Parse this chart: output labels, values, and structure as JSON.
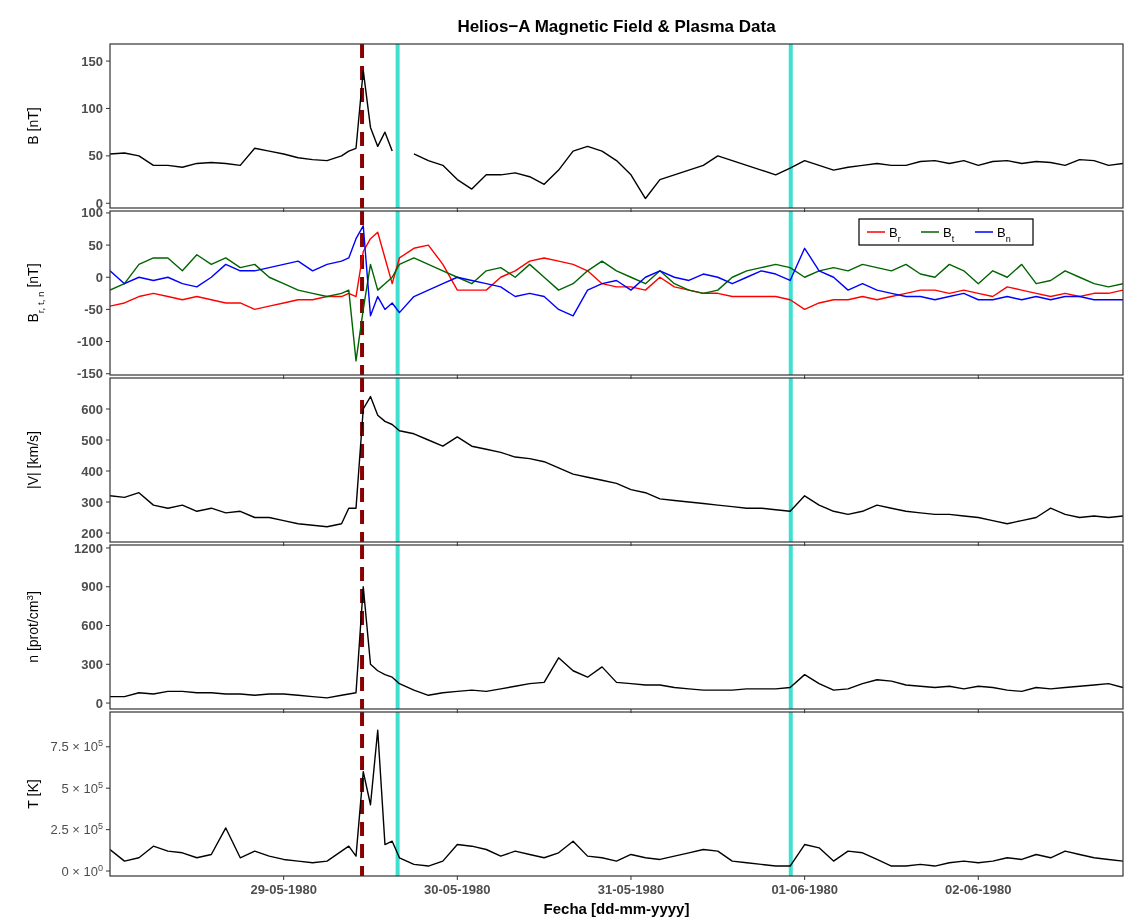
{
  "chart_data": [
    {
      "type": "line",
      "title": "Helios−A Magnetic Field & Plasma Data",
      "ylabel": "B [nT]",
      "tick_labels": "y",
      "xlim": [
        "1980-05-28T00:00",
        "1980-06-02T20:00"
      ],
      "xticks": [
        {
          "value": "1980-05-29",
          "label": null
        },
        {
          "value": "1980-05-30",
          "label": null
        },
        {
          "value": "1980-05-31",
          "label": null
        },
        {
          "value": "1980-06-01",
          "label": null
        },
        {
          "value": "1980-06-02",
          "label": null
        }
      ],
      "ylim": [
        -5,
        168
      ],
      "yticks": [
        0,
        50,
        100,
        150
      ],
      "x": [
        "1980-05-28T00:00",
        "1980-05-28T02:00",
        "1980-05-28T04:00",
        "1980-05-28T06:00",
        "1980-05-28T08:00",
        "1980-05-28T10:00",
        "1980-05-28T12:00",
        "1980-05-28T14:00",
        "1980-05-28T16:00",
        "1980-05-28T18:00",
        "1980-05-28T20:00",
        "1980-05-28T22:00",
        "1980-05-29T00:00",
        "1980-05-29T02:00",
        "1980-05-29T04:00",
        "1980-05-29T06:00",
        "1980-05-29T08:00",
        "1980-05-29T09:00",
        "1980-05-29T10:00",
        "1980-05-29T11:00",
        "1980-05-29T12:00",
        "1980-05-29T13:00",
        "1980-05-29T14:00",
        "1980-05-29T15:00",
        "1980-05-29T16:00",
        "1980-05-29T18:00",
        "1980-05-29T20:00",
        "1980-05-29T22:00",
        "1980-05-30T00:00",
        "1980-05-30T02:00",
        "1980-05-30T04:00",
        "1980-05-30T06:00",
        "1980-05-30T08:00",
        "1980-05-30T10:00",
        "1980-05-30T12:00",
        "1980-05-30T14:00",
        "1980-05-30T16:00",
        "1980-05-30T18:00",
        "1980-05-30T20:00",
        "1980-05-30T22:00",
        "1980-05-31T00:00",
        "1980-05-31T02:00",
        "1980-05-31T04:00",
        "1980-05-31T06:00",
        "1980-05-31T08:00",
        "1980-05-31T10:00",
        "1980-05-31T12:00",
        "1980-05-31T14:00",
        "1980-05-31T16:00",
        "1980-05-31T18:00",
        "1980-05-31T20:00",
        "1980-05-31T22:00",
        "1980-06-01T00:00",
        "1980-06-01T02:00",
        "1980-06-01T04:00",
        "1980-06-01T06:00",
        "1980-06-01T08:00",
        "1980-06-01T10:00",
        "1980-06-01T12:00",
        "1980-06-01T14:00",
        "1980-06-01T16:00",
        "1980-06-01T18:00",
        "1980-06-01T20:00",
        "1980-06-01T22:00",
        "1980-06-02T00:00",
        "1980-06-02T02:00",
        "1980-06-02T04:00",
        "1980-06-02T06:00",
        "1980-06-02T08:00",
        "1980-06-02T10:00",
        "1980-06-02T12:00",
        "1980-06-02T14:00",
        "1980-06-02T16:00",
        "1980-06-02T18:00",
        "1980-06-02T20:00"
      ],
      "series": [
        {
          "color": "#000000",
          "values": [
            52,
            53,
            50,
            40,
            40,
            38,
            42,
            43,
            42,
            40,
            58,
            55,
            52,
            48,
            46,
            45,
            50,
            55,
            58,
            140,
            80,
            60,
            75,
            55,
            null,
            52,
            45,
            40,
            25,
            15,
            30,
            30,
            32,
            28,
            20,
            35,
            55,
            60,
            55,
            45,
            30,
            5,
            25,
            30,
            35,
            40,
            50,
            45,
            40,
            35,
            30,
            37,
            45,
            40,
            35,
            38,
            40,
            42,
            40,
            40,
            44,
            45,
            42,
            45,
            40,
            44,
            45,
            42,
            44,
            43,
            40,
            46,
            45,
            40,
            42
          ]
        }
      ],
      "ref_lines": [
        {
          "axis": "x",
          "value": "1980-05-29T10:50",
          "color": "#8b0000",
          "line_style": "dashed"
        },
        {
          "axis": "x",
          "value": "1980-05-29T15:45",
          "color": "#40e0d0",
          "line_style": "solid"
        },
        {
          "axis": "x",
          "value": "1980-05-31T22:05",
          "color": "#40e0d0",
          "line_style": "solid"
        }
      ]
    },
    {
      "type": "line",
      "ylabel": "B$_{r, t, n}$ [nT]",
      "tick_labels": "y",
      "legend": "top right",
      "xlim": [
        "1980-05-28T00:00",
        "1980-06-02T20:00"
      ],
      "xticks": [
        {
          "value": "1980-05-29",
          "label": null
        },
        {
          "value": "1980-05-30",
          "label": null
        },
        {
          "value": "1980-05-31",
          "label": null
        },
        {
          "value": "1980-06-01",
          "label": null
        },
        {
          "value": "1980-06-02",
          "label": null
        }
      ],
      "ylim": [
        -152,
        103
      ],
      "yticks": [
        -150,
        -100,
        -50,
        0,
        50,
        100
      ],
      "x": [
        "1980-05-28T00:00",
        "1980-05-28T02:00",
        "1980-05-28T04:00",
        "1980-05-28T06:00",
        "1980-05-28T08:00",
        "1980-05-28T10:00",
        "1980-05-28T12:00",
        "1980-05-28T14:00",
        "1980-05-28T16:00",
        "1980-05-28T18:00",
        "1980-05-28T20:00",
        "1980-05-28T22:00",
        "1980-05-29T00:00",
        "1980-05-29T02:00",
        "1980-05-29T04:00",
        "1980-05-29T06:00",
        "1980-05-29T08:00",
        "1980-05-29T09:00",
        "1980-05-29T10:00",
        "1980-05-29T11:00",
        "1980-05-29T12:00",
        "1980-05-29T13:00",
        "1980-05-29T14:00",
        "1980-05-29T15:00",
        "1980-05-29T16:00",
        "1980-05-29T18:00",
        "1980-05-29T20:00",
        "1980-05-29T22:00",
        "1980-05-30T00:00",
        "1980-05-30T02:00",
        "1980-05-30T04:00",
        "1980-05-30T06:00",
        "1980-05-30T08:00",
        "1980-05-30T10:00",
        "1980-05-30T12:00",
        "1980-05-30T14:00",
        "1980-05-30T16:00",
        "1980-05-30T18:00",
        "1980-05-30T20:00",
        "1980-05-30T22:00",
        "1980-05-31T00:00",
        "1980-05-31T02:00",
        "1980-05-31T04:00",
        "1980-05-31T06:00",
        "1980-05-31T08:00",
        "1980-05-31T10:00",
        "1980-05-31T12:00",
        "1980-05-31T14:00",
        "1980-05-31T16:00",
        "1980-05-31T18:00",
        "1980-05-31T20:00",
        "1980-05-31T22:00",
        "1980-06-01T00:00",
        "1980-06-01T02:00",
        "1980-06-01T04:00",
        "1980-06-01T06:00",
        "1980-06-01T08:00",
        "1980-06-01T10:00",
        "1980-06-01T12:00",
        "1980-06-01T14:00",
        "1980-06-01T16:00",
        "1980-06-01T18:00",
        "1980-06-01T20:00",
        "1980-06-01T22:00",
        "1980-06-02T00:00",
        "1980-06-02T02:00",
        "1980-06-02T04:00",
        "1980-06-02T06:00",
        "1980-06-02T08:00",
        "1980-06-02T10:00",
        "1980-06-02T12:00",
        "1980-06-02T14:00",
        "1980-06-02T16:00",
        "1980-06-02T18:00",
        "1980-06-02T20:00"
      ],
      "series": [
        {
          "name": "B$_{r}$",
          "color": "#ff0000",
          "values": [
            -45,
            -40,
            -30,
            -25,
            -30,
            -35,
            -30,
            -35,
            -40,
            -40,
            -50,
            -45,
            -40,
            -35,
            -35,
            -30,
            -30,
            -25,
            -30,
            40,
            60,
            70,
            30,
            -10,
            30,
            45,
            50,
            20,
            -20,
            -20,
            -20,
            0,
            10,
            25,
            30,
            25,
            20,
            10,
            -10,
            -15,
            -15,
            -20,
            0,
            -15,
            -20,
            -25,
            -25,
            -30,
            -30,
            -30,
            -30,
            -35,
            -50,
            -40,
            -35,
            -35,
            -30,
            -35,
            -30,
            -25,
            -20,
            -20,
            -25,
            -20,
            -25,
            -30,
            -15,
            -20,
            -25,
            -30,
            -25,
            -30,
            -25,
            -25,
            -20
          ]
        },
        {
          "name": "B$_{t}$",
          "color": "#006400",
          "values": [
            -20,
            -10,
            20,
            30,
            30,
            10,
            35,
            20,
            30,
            15,
            20,
            0,
            -10,
            -20,
            -25,
            -30,
            -25,
            -20,
            -130,
            -50,
            20,
            -20,
            -10,
            0,
            20,
            30,
            20,
            10,
            0,
            -10,
            10,
            15,
            0,
            20,
            0,
            -20,
            -10,
            10,
            25,
            10,
            0,
            -10,
            10,
            -10,
            -20,
            -25,
            -20,
            0,
            10,
            15,
            20,
            15,
            0,
            10,
            15,
            10,
            20,
            15,
            10,
            20,
            5,
            0,
            20,
            10,
            -10,
            10,
            0,
            20,
            -10,
            -5,
            10,
            0,
            -10,
            -15,
            -10
          ]
        },
        {
          "name": "B$_{n}$",
          "color": "#0000ff",
          "values": [
            10,
            -10,
            0,
            -5,
            0,
            -10,
            -15,
            0,
            20,
            10,
            10,
            15,
            20,
            25,
            10,
            20,
            25,
            30,
            60,
            80,
            -60,
            -30,
            -50,
            -40,
            -55,
            -30,
            -20,
            -10,
            0,
            -5,
            -10,
            -15,
            -30,
            -25,
            -30,
            -50,
            -60,
            -20,
            -10,
            -5,
            -20,
            0,
            10,
            0,
            -5,
            5,
            0,
            -10,
            0,
            10,
            5,
            -5,
            45,
            10,
            0,
            -20,
            -10,
            -20,
            -25,
            -30,
            -30,
            -35,
            -30,
            -25,
            -35,
            -35,
            -30,
            -35,
            -30,
            -35,
            -30,
            -30,
            -35,
            -35,
            -35
          ]
        }
      ],
      "ref_lines": [
        {
          "axis": "x",
          "value": "1980-05-29T10:50",
          "color": "#8b0000",
          "line_style": "dashed"
        },
        {
          "axis": "x",
          "value": "1980-05-29T15:45",
          "color": "#40e0d0",
          "line_style": "solid"
        },
        {
          "axis": "x",
          "value": "1980-05-31T22:05",
          "color": "#40e0d0",
          "line_style": "solid"
        }
      ]
    },
    {
      "type": "line",
      "ylabel": "|V| [km/s]",
      "tick_labels": "y",
      "xlim": [
        "1980-05-28T00:00",
        "1980-06-02T20:00"
      ],
      "xticks": [
        {
          "value": "1980-05-29",
          "label": null
        },
        {
          "value": "1980-05-30",
          "label": null
        },
        {
          "value": "1980-05-31",
          "label": null
        },
        {
          "value": "1980-06-01",
          "label": null
        },
        {
          "value": "1980-06-02",
          "label": null
        }
      ],
      "ylim": [
        171,
        700
      ],
      "yticks": [
        200,
        300,
        400,
        500,
        600
      ],
      "x": [
        "1980-05-28T00:00",
        "1980-05-28T02:00",
        "1980-05-28T04:00",
        "1980-05-28T06:00",
        "1980-05-28T08:00",
        "1980-05-28T10:00",
        "1980-05-28T12:00",
        "1980-05-28T14:00",
        "1980-05-28T16:00",
        "1980-05-28T18:00",
        "1980-05-28T20:00",
        "1980-05-28T22:00",
        "1980-05-29T00:00",
        "1980-05-29T02:00",
        "1980-05-29T04:00",
        "1980-05-29T06:00",
        "1980-05-29T08:00",
        "1980-05-29T09:00",
        "1980-05-29T10:00",
        "1980-05-29T11:00",
        "1980-05-29T12:00",
        "1980-05-29T13:00",
        "1980-05-29T14:00",
        "1980-05-29T15:00",
        "1980-05-29T16:00",
        "1980-05-29T18:00",
        "1980-05-29T20:00",
        "1980-05-29T22:00",
        "1980-05-30T00:00",
        "1980-05-30T02:00",
        "1980-05-30T04:00",
        "1980-05-30T06:00",
        "1980-05-30T08:00",
        "1980-05-30T10:00",
        "1980-05-30T12:00",
        "1980-05-30T14:00",
        "1980-05-30T16:00",
        "1980-05-30T18:00",
        "1980-05-30T20:00",
        "1980-05-30T22:00",
        "1980-05-31T00:00",
        "1980-05-31T02:00",
        "1980-05-31T04:00",
        "1980-05-31T06:00",
        "1980-05-31T08:00",
        "1980-05-31T10:00",
        "1980-05-31T12:00",
        "1980-05-31T14:00",
        "1980-05-31T16:00",
        "1980-05-31T18:00",
        "1980-05-31T20:00",
        "1980-05-31T22:00",
        "1980-06-01T00:00",
        "1980-06-01T02:00",
        "1980-06-01T04:00",
        "1980-06-01T06:00",
        "1980-06-01T08:00",
        "1980-06-01T10:00",
        "1980-06-01T12:00",
        "1980-06-01T14:00",
        "1980-06-01T16:00",
        "1980-06-01T18:00",
        "1980-06-01T20:00",
        "1980-06-01T22:00",
        "1980-06-02T00:00",
        "1980-06-02T02:00",
        "1980-06-02T04:00",
        "1980-06-02T06:00",
        "1980-06-02T08:00",
        "1980-06-02T10:00",
        "1980-06-02T12:00",
        "1980-06-02T14:00",
        "1980-06-02T16:00",
        "1980-06-02T18:00",
        "1980-06-02T20:00"
      ],
      "series": [
        {
          "color": "#000000",
          "values": [
            320,
            315,
            330,
            290,
            280,
            290,
            270,
            280,
            265,
            270,
            250,
            250,
            240,
            230,
            225,
            220,
            230,
            280,
            280,
            600,
            640,
            580,
            560,
            550,
            530,
            520,
            500,
            480,
            510,
            480,
            470,
            460,
            445,
            440,
            430,
            410,
            390,
            380,
            370,
            360,
            340,
            330,
            310,
            305,
            300,
            295,
            290,
            285,
            280,
            280,
            275,
            270,
            320,
            290,
            270,
            260,
            270,
            290,
            280,
            270,
            265,
            260,
            260,
            255,
            250,
            240,
            230,
            240,
            250,
            280,
            260,
            250,
            255,
            250,
            255
          ]
        }
      ],
      "ref_lines": [
        {
          "axis": "x",
          "value": "1980-05-29T10:50",
          "color": "#8b0000",
          "line_style": "dashed"
        },
        {
          "axis": "x",
          "value": "1980-05-29T15:45",
          "color": "#40e0d0",
          "line_style": "solid"
        },
        {
          "axis": "x",
          "value": "1980-05-31T22:05",
          "color": "#40e0d0",
          "line_style": "solid"
        }
      ]
    },
    {
      "type": "line",
      "ylabel": "n [prot/cm$^{3}$]",
      "tick_labels": "y",
      "xlim": [
        "1980-05-28T00:00",
        "1980-06-02T20:00"
      ],
      "xticks": [
        {
          "value": "1980-05-29",
          "label": null
        },
        {
          "value": "1980-05-30",
          "label": null
        },
        {
          "value": "1980-05-31",
          "label": null
        },
        {
          "value": "1980-06-01",
          "label": null
        },
        {
          "value": "1980-06-02",
          "label": null
        }
      ],
      "ylim": [
        -46,
        1223
      ],
      "yticks": [
        0,
        300,
        600,
        900,
        1200
      ],
      "x": [
        "1980-05-28T00:00",
        "1980-05-28T02:00",
        "1980-05-28T04:00",
        "1980-05-28T06:00",
        "1980-05-28T08:00",
        "1980-05-28T10:00",
        "1980-05-28T12:00",
        "1980-05-28T14:00",
        "1980-05-28T16:00",
        "1980-05-28T18:00",
        "1980-05-28T20:00",
        "1980-05-28T22:00",
        "1980-05-29T00:00",
        "1980-05-29T02:00",
        "1980-05-29T04:00",
        "1980-05-29T06:00",
        "1980-05-29T08:00",
        "1980-05-29T09:00",
        "1980-05-29T10:00",
        "1980-05-29T11:00",
        "1980-05-29T12:00",
        "1980-05-29T13:00",
        "1980-05-29T14:00",
        "1980-05-29T15:00",
        "1980-05-29T16:00",
        "1980-05-29T18:00",
        "1980-05-29T20:00",
        "1980-05-29T22:00",
        "1980-05-30T00:00",
        "1980-05-30T02:00",
        "1980-05-30T04:00",
        "1980-05-30T06:00",
        "1980-05-30T08:00",
        "1980-05-30T10:00",
        "1980-05-30T12:00",
        "1980-05-30T14:00",
        "1980-05-30T16:00",
        "1980-05-30T18:00",
        "1980-05-30T20:00",
        "1980-05-30T22:00",
        "1980-05-31T00:00",
        "1980-05-31T02:00",
        "1980-05-31T04:00",
        "1980-05-31T06:00",
        "1980-05-31T08:00",
        "1980-05-31T10:00",
        "1980-05-31T12:00",
        "1980-05-31T14:00",
        "1980-05-31T16:00",
        "1980-05-31T18:00",
        "1980-05-31T20:00",
        "1980-05-31T22:00",
        "1980-06-01T00:00",
        "1980-06-01T02:00",
        "1980-06-01T04:00",
        "1980-06-01T06:00",
        "1980-06-01T08:00",
        "1980-06-01T10:00",
        "1980-06-01T12:00",
        "1980-06-01T14:00",
        "1980-06-01T16:00",
        "1980-06-01T18:00",
        "1980-06-01T20:00",
        "1980-06-01T22:00",
        "1980-06-02T00:00",
        "1980-06-02T02:00",
        "1980-06-02T04:00",
        "1980-06-02T06:00",
        "1980-06-02T08:00",
        "1980-06-02T10:00",
        "1980-06-02T12:00",
        "1980-06-02T14:00",
        "1980-06-02T16:00",
        "1980-06-02T18:00",
        "1980-06-02T20:00"
      ],
      "series": [
        {
          "color": "#000000",
          "values": [
            50,
            50,
            80,
            70,
            90,
            90,
            80,
            80,
            70,
            70,
            60,
            70,
            70,
            60,
            50,
            40,
            60,
            70,
            80,
            900,
            300,
            250,
            220,
            200,
            150,
            100,
            60,
            80,
            90,
            100,
            90,
            110,
            130,
            150,
            160,
            350,
            250,
            200,
            280,
            160,
            150,
            140,
            140,
            120,
            110,
            100,
            100,
            100,
            110,
            110,
            110,
            120,
            220,
            150,
            100,
            110,
            150,
            180,
            170,
            140,
            130,
            120,
            130,
            110,
            130,
            120,
            100,
            90,
            120,
            110,
            120,
            130,
            140,
            150,
            120
          ]
        }
      ],
      "ref_lines": [
        {
          "axis": "x",
          "value": "1980-05-29T10:50",
          "color": "#8b0000",
          "line_style": "dashed"
        },
        {
          "axis": "x",
          "value": "1980-05-29T15:45",
          "color": "#40e0d0",
          "line_style": "solid"
        },
        {
          "axis": "x",
          "value": "1980-05-31T22:05",
          "color": "#40e0d0",
          "line_style": "solid"
        }
      ]
    },
    {
      "type": "line",
      "ylabel": "T [K]",
      "xlabel": "Fecha [dd-mm-yyyy]",
      "xlim": [
        "1980-05-28T00:00",
        "1980-06-02T20:00"
      ],
      "xticks": [
        {
          "value": "1980-05-29",
          "label": "29-05-1980"
        },
        {
          "value": "1980-05-30",
          "label": "30-05-1980"
        },
        {
          "value": "1980-05-31",
          "label": "31-05-1980"
        },
        {
          "value": "1980-06-01",
          "label": "01-06-1980"
        },
        {
          "value": "1980-06-02",
          "label": "02-06-1980"
        }
      ],
      "ylim": [
        -30000,
        960000
      ],
      "yticks": [
        {
          "value": 0,
          "label": "0 × 10$^{0}$"
        },
        {
          "value": 250000,
          "label": "2.5 × 10$^{5}$"
        },
        {
          "value": 500000,
          "label": "5 × 10$^{5}$"
        },
        {
          "value": 750000,
          "label": "7.5 × 10$^{5}$"
        }
      ],
      "x": [
        "1980-05-28T00:00",
        "1980-05-28T02:00",
        "1980-05-28T04:00",
        "1980-05-28T06:00",
        "1980-05-28T08:00",
        "1980-05-28T10:00",
        "1980-05-28T12:00",
        "1980-05-28T14:00",
        "1980-05-28T16:00",
        "1980-05-28T18:00",
        "1980-05-28T20:00",
        "1980-05-28T22:00",
        "1980-05-29T00:00",
        "1980-05-29T02:00",
        "1980-05-29T04:00",
        "1980-05-29T06:00",
        "1980-05-29T08:00",
        "1980-05-29T09:00",
        "1980-05-29T10:00",
        "1980-05-29T11:00",
        "1980-05-29T12:00",
        "1980-05-29T13:00",
        "1980-05-29T14:00",
        "1980-05-29T15:00",
        "1980-05-29T16:00",
        "1980-05-29T18:00",
        "1980-05-29T20:00",
        "1980-05-29T22:00",
        "1980-05-30T00:00",
        "1980-05-30T02:00",
        "1980-05-30T04:00",
        "1980-05-30T06:00",
        "1980-05-30T08:00",
        "1980-05-30T10:00",
        "1980-05-30T12:00",
        "1980-05-30T14:00",
        "1980-05-30T16:00",
        "1980-05-30T18:00",
        "1980-05-30T20:00",
        "1980-05-30T22:00",
        "1980-05-31T00:00",
        "1980-05-31T02:00",
        "1980-05-31T04:00",
        "1980-05-31T06:00",
        "1980-05-31T08:00",
        "1980-05-31T10:00",
        "1980-05-31T12:00",
        "1980-05-31T14:00",
        "1980-05-31T16:00",
        "1980-05-31T18:00",
        "1980-05-31T20:00",
        "1980-05-31T22:00",
        "1980-06-01T00:00",
        "1980-06-01T02:00",
        "1980-06-01T04:00",
        "1980-06-01T06:00",
        "1980-06-01T08:00",
        "1980-06-01T10:00",
        "1980-06-01T12:00",
        "1980-06-01T14:00",
        "1980-06-01T16:00",
        "1980-06-01T18:00",
        "1980-06-01T20:00",
        "1980-06-01T22:00",
        "1980-06-02T00:00",
        "1980-06-02T02:00",
        "1980-06-02T04:00",
        "1980-06-02T06:00",
        "1980-06-02T08:00",
        "1980-06-02T10:00",
        "1980-06-02T12:00",
        "1980-06-02T14:00",
        "1980-06-02T16:00",
        "1980-06-02T18:00",
        "1980-06-02T20:00"
      ],
      "series": [
        {
          "color": "#000000",
          "values": [
            130000,
            60000,
            80000,
            150000,
            120000,
            110000,
            80000,
            100000,
            260000,
            80000,
            120000,
            90000,
            70000,
            60000,
            50000,
            60000,
            120000,
            150000,
            90000,
            600000,
            400000,
            850000,
            160000,
            180000,
            80000,
            40000,
            30000,
            60000,
            160000,
            150000,
            130000,
            90000,
            120000,
            100000,
            80000,
            110000,
            180000,
            90000,
            80000,
            60000,
            100000,
            80000,
            70000,
            90000,
            110000,
            130000,
            120000,
            60000,
            50000,
            40000,
            30000,
            30000,
            160000,
            140000,
            60000,
            120000,
            110000,
            70000,
            30000,
            30000,
            40000,
            30000,
            50000,
            60000,
            50000,
            60000,
            80000,
            70000,
            100000,
            80000,
            120000,
            100000,
            80000,
            70000,
            60000
          ]
        }
      ],
      "ref_lines": [
        {
          "axis": "x",
          "value": "1980-05-29T10:50",
          "color": "#8b0000",
          "line_style": "dashed"
        },
        {
          "axis": "x",
          "value": "1980-05-29T15:45",
          "color": "#40e0d0",
          "line_style": "solid"
        },
        {
          "axis": "x",
          "value": "1980-05-31T22:05",
          "color": "#40e0d0",
          "line_style": "solid"
        }
      ]
    }
  ]
}
